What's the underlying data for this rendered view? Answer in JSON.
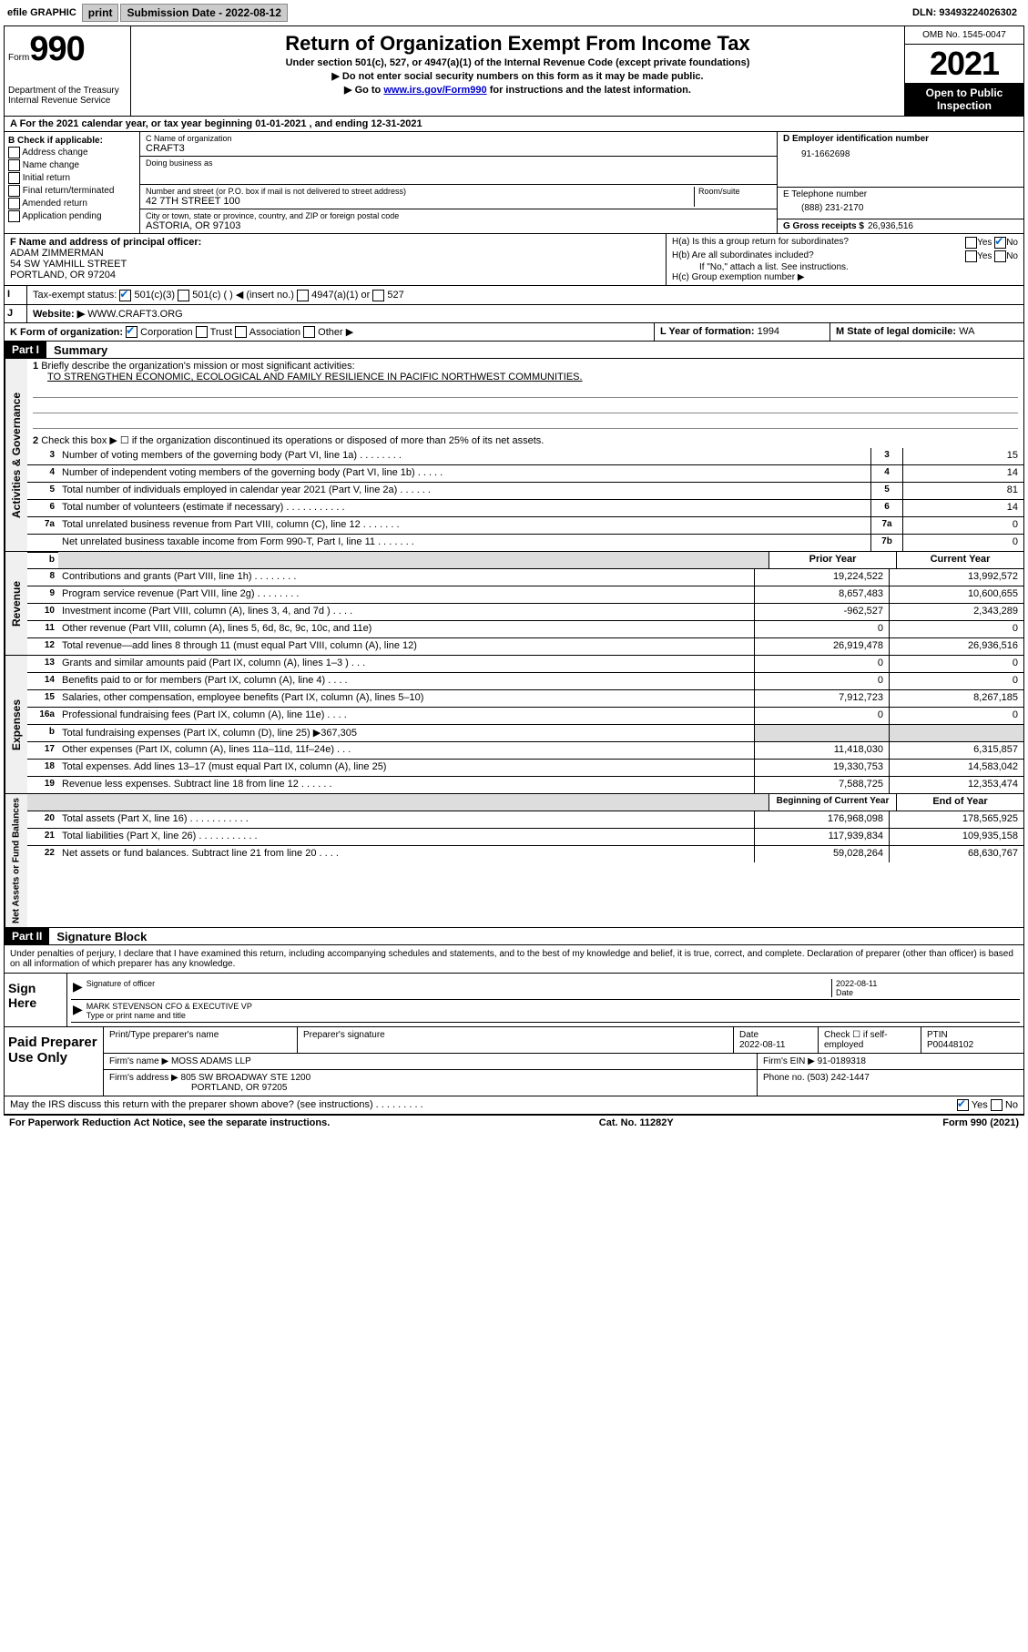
{
  "top": {
    "efile": "efile GRAPHIC",
    "print": "print",
    "subdate_label": "Submission Date -",
    "subdate": "2022-08-12",
    "dln_label": "DLN:",
    "dln": "93493224026302"
  },
  "header": {
    "form_word": "Form",
    "form_num": "990",
    "dept": "Department of the Treasury",
    "irs": "Internal Revenue Service",
    "title": "Return of Organization Exempt From Income Tax",
    "subtitle": "Under section 501(c), 527, or 4947(a)(1) of the Internal Revenue Code (except private foundations)",
    "note1": "▶ Do not enter social security numbers on this form as it may be made public.",
    "note2_pre": "▶ Go to ",
    "note2_link": "www.irs.gov/Form990",
    "note2_post": " for instructions and the latest information.",
    "omb": "OMB No. 1545-0047",
    "year": "2021",
    "open": "Open to Public Inspection"
  },
  "row_a": "A For the 2021 calendar year, or tax year beginning 01-01-2021   , and ending 12-31-2021",
  "col_b": {
    "title": "B Check if applicable:",
    "items": [
      "Address change",
      "Name change",
      "Initial return",
      "Final return/terminated",
      "Amended return",
      "Application pending"
    ]
  },
  "col_c": {
    "name_lbl": "C Name of organization",
    "name": "CRAFT3",
    "dba_lbl": "Doing business as",
    "dba": "",
    "addr_lbl": "Number and street (or P.O. box if mail is not delivered to street address)",
    "room_lbl": "Room/suite",
    "addr": "42 7TH STREET 100",
    "city_lbl": "City or town, state or province, country, and ZIP or foreign postal code",
    "city": "ASTORIA, OR  97103"
  },
  "col_d": {
    "d_lbl": "D Employer identification number",
    "d_val": "91-1662698",
    "e_lbl": "E Telephone number",
    "e_val": "(888) 231-2170",
    "g_lbl": "G Gross receipts $",
    "g_val": "26,936,516"
  },
  "row_f": {
    "f_lbl": "F Name and address of principal officer:",
    "f_name": "ADAM ZIMMERMAN",
    "f_addr1": "54 SW YAMHILL STREET",
    "f_addr2": "PORTLAND, OR  97204",
    "ha_lbl": "H(a)  Is this a group return for subordinates?",
    "hb_lbl": "H(b)  Are all subordinates included?",
    "hb_note": "If \"No,\" attach a list. See instructions.",
    "hc_lbl": "H(c)  Group exemption number ▶",
    "yes": "Yes",
    "no": "No"
  },
  "row_i": {
    "i_lbl": "I",
    "tax_lbl": "Tax-exempt status:",
    "c3": "501(c)(3)",
    "c": "501(c) (   ) ◀ (insert no.)",
    "a1": "4947(a)(1) or",
    "s527": "527"
  },
  "row_j": {
    "j_lbl": "J",
    "web_lbl": "Website: ▶",
    "web_val": "WWW.CRAFT3.ORG"
  },
  "row_k": {
    "k_lbl": "K Form of organization:",
    "corp": "Corporation",
    "trust": "Trust",
    "assoc": "Association",
    "other": "Other ▶",
    "l_lbl": "L Year of formation:",
    "l_val": "1994",
    "m_lbl": "M State of legal domicile:",
    "m_val": "WA"
  },
  "part1": {
    "header": "Part I",
    "title": "Summary",
    "q1": "Briefly describe the organization's mission or most significant activities:",
    "mission": "TO STRENGTHEN ECONOMIC, ECOLOGICAL AND FAMILY RESILIENCE IN PACIFIC NORTHWEST COMMUNITIES.",
    "q2": "Check this box ▶ ☐  if the organization discontinued its operations or disposed of more than 25% of its net assets.",
    "gov_label": "Activities & Governance",
    "rev_label": "Revenue",
    "exp_label": "Expenses",
    "net_label": "Net Assets or Fund Balances",
    "lines_gov": [
      {
        "n": "3",
        "t": "Number of voting members of the governing body (Part VI, line 1a)   .    .    .    .    .    .    .    .",
        "box": "3",
        "v": "15"
      },
      {
        "n": "4",
        "t": "Number of independent voting members of the governing body (Part VI, line 1b)    .    .    .    .    .",
        "box": "4",
        "v": "14"
      },
      {
        "n": "5",
        "t": "Total number of individuals employed in calendar year 2021 (Part V, line 2a)    .    .    .    .    .    .",
        "box": "5",
        "v": "81"
      },
      {
        "n": "6",
        "t": "Total number of volunteers (estimate if necessary)    .    .    .    .    .    .    .    .    .    .    .",
        "box": "6",
        "v": "14"
      },
      {
        "n": "7a",
        "t": "Total unrelated business revenue from Part VIII, column (C), line 12    .    .    .    .    .    .    .",
        "box": "7a",
        "v": "0"
      },
      {
        "n": "",
        "t": "Net unrelated business taxable income from Form 990-T, Part I, line 11    .    .    .    .    .    .    .",
        "box": "7b",
        "v": "0"
      }
    ],
    "prior_year": "Prior Year",
    "current_year": "Current Year",
    "lines_rev": [
      {
        "n": "8",
        "t": "Contributions and grants (Part VIII, line 1h)    .    .    .    .    .    .    .    .",
        "p": "19,224,522",
        "c": "13,992,572"
      },
      {
        "n": "9",
        "t": "Program service revenue (Part VIII, line 2g)    .    .    .    .    .    .    .    .",
        "p": "8,657,483",
        "c": "10,600,655"
      },
      {
        "n": "10",
        "t": "Investment income (Part VIII, column (A), lines 3, 4, and 7d )    .    .    .    .",
        "p": "-962,527",
        "c": "2,343,289"
      },
      {
        "n": "11",
        "t": "Other revenue (Part VIII, column (A), lines 5, 6d, 8c, 9c, 10c, and 11e)",
        "p": "0",
        "c": "0"
      },
      {
        "n": "12",
        "t": "Total revenue—add lines 8 through 11 (must equal Part VIII, column (A), line 12)",
        "p": "26,919,478",
        "c": "26,936,516"
      }
    ],
    "lines_exp": [
      {
        "n": "13",
        "t": "Grants and similar amounts paid (Part IX, column (A), lines 1–3 )    .    .    .",
        "p": "0",
        "c": "0"
      },
      {
        "n": "14",
        "t": "Benefits paid to or for members (Part IX, column (A), line 4)    .    .    .    .",
        "p": "0",
        "c": "0"
      },
      {
        "n": "15",
        "t": "Salaries, other compensation, employee benefits (Part IX, column (A), lines 5–10)",
        "p": "7,912,723",
        "c": "8,267,185"
      },
      {
        "n": "16a",
        "t": "Professional fundraising fees (Part IX, column (A), line 11e)    .    .    .    .",
        "p": "0",
        "c": "0"
      },
      {
        "n": "b",
        "t": "Total fundraising expenses (Part IX, column (D), line 25) ▶367,305",
        "p": "",
        "c": "",
        "gray": true
      },
      {
        "n": "17",
        "t": "Other expenses (Part IX, column (A), lines 11a–11d, 11f–24e)    .    .    .",
        "p": "11,418,030",
        "c": "6,315,857"
      },
      {
        "n": "18",
        "t": "Total expenses. Add lines 13–17 (must equal Part IX, column (A), line 25)",
        "p": "19,330,753",
        "c": "14,583,042"
      },
      {
        "n": "19",
        "t": "Revenue less expenses. Subtract line 18 from line 12    .    .    .    .    .    .",
        "p": "7,588,725",
        "c": "12,353,474"
      }
    ],
    "beg_year": "Beginning of Current Year",
    "end_year": "End of Year",
    "lines_net": [
      {
        "n": "20",
        "t": "Total assets (Part X, line 16)    .    .    .    .    .    .    .    .    .    .    .",
        "p": "176,968,098",
        "c": "178,565,925"
      },
      {
        "n": "21",
        "t": "Total liabilities (Part X, line 26)    .    .    .    .    .    .    .    .    .    .    .",
        "p": "117,939,834",
        "c": "109,935,158"
      },
      {
        "n": "22",
        "t": "Net assets or fund balances. Subtract line 21 from line 20    .    .    .    .",
        "p": "59,028,264",
        "c": "68,630,767"
      }
    ]
  },
  "part2": {
    "header": "Part II",
    "title": "Signature Block",
    "decl": "Under penalties of perjury, I declare that I have examined this return, including accompanying schedules and statements, and to the best of my knowledge and belief, it is true, correct, and complete. Declaration of preparer (other than officer) is based on all information of which preparer has any knowledge.",
    "sign_here": "Sign Here",
    "sig_officer": "Signature of officer",
    "date": "Date",
    "sig_date": "2022-08-11",
    "officer_name": "MARK STEVENSON CFO & EXECUTIVE VP",
    "type_name": "Type or print name and title",
    "paid": "Paid Preparer Use Only",
    "prep_name_lbl": "Print/Type preparer's name",
    "prep_sig_lbl": "Preparer's signature",
    "prep_date_lbl": "Date",
    "prep_date": "2022-08-11",
    "check_if": "Check ☐ if self-employed",
    "ptin_lbl": "PTIN",
    "ptin": "P00448102",
    "firm_name_lbl": "Firm's name     ▶",
    "firm_name": "MOSS ADAMS LLP",
    "firm_ein_lbl": "Firm's EIN ▶",
    "firm_ein": "91-0189318",
    "firm_addr_lbl": "Firm's address ▶",
    "firm_addr": "805 SW BROADWAY STE 1200",
    "firm_city": "PORTLAND, OR  97205",
    "phone_lbl": "Phone no.",
    "phone": "(503) 242-1447"
  },
  "footer": {
    "discuss": "May the IRS discuss this return with the preparer shown above? (see instructions)    .    .    .    .    .    .    .    .    .",
    "yes": "Yes",
    "no": "No",
    "paperwork": "For Paperwork Reduction Act Notice, see the separate instructions.",
    "cat": "Cat. No. 11282Y",
    "form": "Form 990 (2021)"
  }
}
